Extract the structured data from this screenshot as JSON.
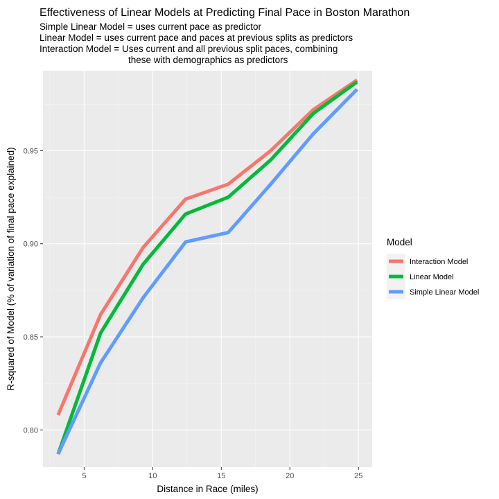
{
  "chart_data": {
    "type": "line",
    "title": "Effectiveness of Linear Models at Predicting Final Pace in Boston Marathon",
    "subtitle_lines": [
      "Simple Linear Model = uses current pace as predictor",
      "Linear Model = uses current pace and paces at previous splits as predictors",
      "Interaction Model = Uses current and all previous split paces, combining",
      "these with demographics as predictors"
    ],
    "xlabel": "Distance in Race (miles)",
    "ylabel": "R-squared of Model (% of variation of final pace explained)",
    "xlim": [
      2.0,
      26.0
    ],
    "ylim": [
      0.78,
      0.993
    ],
    "x_ticks": [
      5,
      10,
      15,
      20,
      25
    ],
    "x_tick_labels": [
      "5",
      "10",
      "15",
      "20",
      "25"
    ],
    "y_ticks": [
      0.8,
      0.85,
      0.9,
      0.95
    ],
    "y_tick_labels": [
      "0.80",
      "0.85",
      "0.90",
      "0.95"
    ],
    "grid": true,
    "legend": {
      "title": "Model",
      "position": "right"
    },
    "x": [
      3.1,
      6.2,
      9.3,
      12.4,
      15.5,
      18.6,
      21.7,
      24.9
    ],
    "series": [
      {
        "name": "Interaction Model",
        "color": "#F8766D",
        "values": [
          0.808,
          0.862,
          0.898,
          0.924,
          0.932,
          0.95,
          0.972,
          0.988
        ]
      },
      {
        "name": "Linear Model",
        "color": "#00BA38",
        "values": [
          0.787,
          0.852,
          0.889,
          0.916,
          0.925,
          0.945,
          0.97,
          0.987
        ]
      },
      {
        "name": "Simple Linear Model",
        "color": "#619CFF",
        "values": [
          0.787,
          0.836,
          0.871,
          0.901,
          0.906,
          0.932,
          0.959,
          0.983
        ]
      }
    ]
  }
}
